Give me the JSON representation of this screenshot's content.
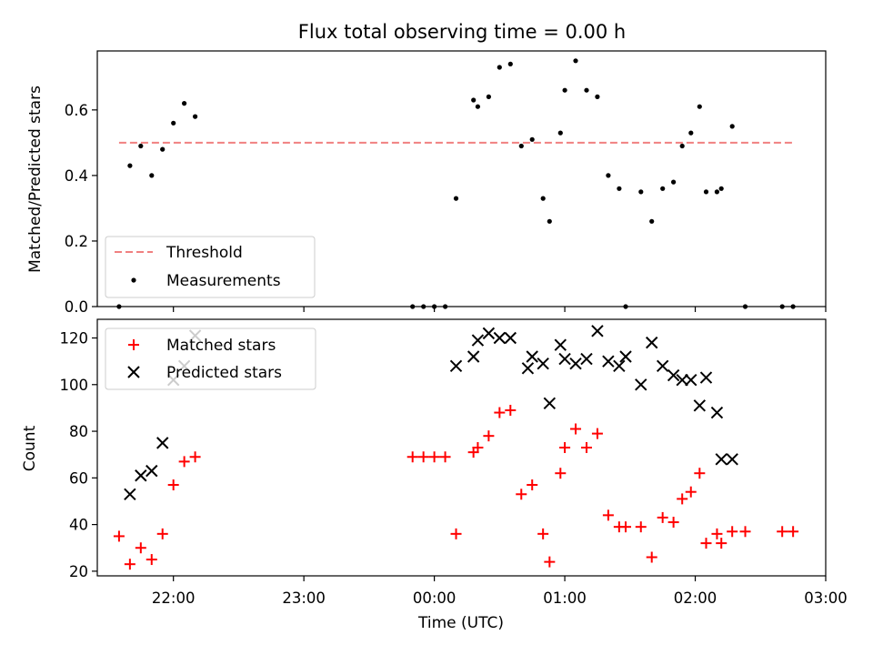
{
  "chart_data": {
    "title": "Flux total observing time = 0.00 h",
    "xlabel": "Time (UTC)",
    "x_ticks": [
      "22:00",
      "23:00",
      "00:00",
      "01:00",
      "02:00",
      "03:00"
    ],
    "xlim": [
      "21:25",
      "03:00"
    ],
    "panels": [
      {
        "type": "scatter",
        "ylabel": "Matched/Predicted stars",
        "ylim": [
          0,
          0.78
        ],
        "y_ticks": [
          "0.0",
          "0.2",
          "0.4",
          "0.6"
        ],
        "legend_position": "lower-left",
        "threshold": {
          "name": "Threshold",
          "value": 0.5,
          "x_range": [
            "21:35",
            "02:45"
          ],
          "color": "#f08080"
        },
        "series": [
          {
            "name": "Measurements",
            "color": "#000000",
            "x": [
              "21:35",
              "21:40",
              "21:45",
              "21:50",
              "21:55",
              "22:00",
              "22:05",
              "22:10",
              "23:50",
              "23:55",
              "00:00",
              "00:05",
              "00:10",
              "00:18",
              "00:20",
              "00:25",
              "00:30",
              "00:35",
              "00:40",
              "00:45",
              "00:50",
              "00:53",
              "00:58",
              "01:00",
              "01:05",
              "01:10",
              "01:15",
              "01:20",
              "01:25",
              "01:28",
              "01:35",
              "01:40",
              "01:45",
              "01:50",
              "01:54",
              "01:58",
              "02:02",
              "02:05",
              "02:10",
              "02:12",
              "02:17",
              "02:23",
              "02:40",
              "02:45"
            ],
            "y": [
              0.0,
              0.43,
              0.49,
              0.4,
              0.48,
              0.56,
              0.62,
              0.58,
              0.0,
              0.0,
              0.0,
              0.0,
              0.33,
              0.63,
              0.61,
              0.64,
              0.73,
              0.74,
              0.49,
              0.51,
              0.33,
              0.26,
              0.53,
              0.66,
              0.75,
              0.66,
              0.64,
              0.4,
              0.36,
              0.0,
              0.35,
              0.26,
              0.36,
              0.38,
              0.49,
              0.53,
              0.61,
              0.35,
              0.35,
              0.36,
              0.55,
              0.0,
              0.0,
              0.0
            ]
          }
        ]
      },
      {
        "type": "scatter",
        "ylabel": "Count",
        "ylim": [
          18,
          128
        ],
        "y_ticks": [
          "20",
          "40",
          "60",
          "80",
          "100",
          "120"
        ],
        "legend_position": "upper-left",
        "series": [
          {
            "name": "Matched stars",
            "marker": "plus",
            "color": "#ff0000",
            "x": [
              "21:35",
              "21:40",
              "21:45",
              "21:50",
              "21:55",
              "22:00",
              "22:05",
              "22:10",
              "23:50",
              "23:55",
              "00:00",
              "00:05",
              "00:10",
              "00:18",
              "00:20",
              "00:25",
              "00:30",
              "00:35",
              "00:40",
              "00:45",
              "00:50",
              "00:53",
              "00:58",
              "01:00",
              "01:05",
              "01:10",
              "01:15",
              "01:20",
              "01:25",
              "01:28",
              "01:35",
              "01:40",
              "01:45",
              "01:50",
              "01:54",
              "01:58",
              "02:02",
              "02:05",
              "02:10",
              "02:12",
              "02:17",
              "02:23",
              "02:40",
              "02:45"
            ],
            "y": [
              35,
              23,
              30,
              25,
              36,
              57,
              67,
              69,
              69,
              69,
              69,
              69,
              36,
              71,
              73,
              78,
              88,
              89,
              53,
              57,
              36,
              24,
              62,
              73,
              81,
              73,
              79,
              44,
              39,
              39,
              39,
              26,
              43,
              41,
              51,
              54,
              62,
              32,
              36,
              32,
              37,
              37,
              37,
              37
            ]
          },
          {
            "name": "Predicted stars",
            "marker": "x",
            "color": "#000000",
            "x": [
              "21:40",
              "21:45",
              "21:50",
              "21:55",
              "22:00",
              "22:05",
              "22:10",
              "00:10",
              "00:18",
              "00:20",
              "00:25",
              "00:30",
              "00:35",
              "00:43",
              "00:45",
              "00:50",
              "00:53",
              "00:58",
              "01:00",
              "01:05",
              "01:10",
              "01:15",
              "01:20",
              "01:25",
              "01:28",
              "01:35",
              "01:40",
              "01:45",
              "01:50",
              "01:54",
              "01:58",
              "02:02",
              "02:05",
              "02:10",
              "02:12",
              "02:17"
            ],
            "y": [
              53,
              61,
              63,
              75,
              102,
              108,
              121,
              108,
              112,
              119,
              122,
              120,
              120,
              107,
              112,
              109,
              92,
              117,
              111,
              109,
              111,
              123,
              110,
              108,
              112,
              100,
              118,
              108,
              104,
              102,
              102,
              91,
              103,
              88,
              68,
              68
            ]
          }
        ]
      }
    ]
  }
}
